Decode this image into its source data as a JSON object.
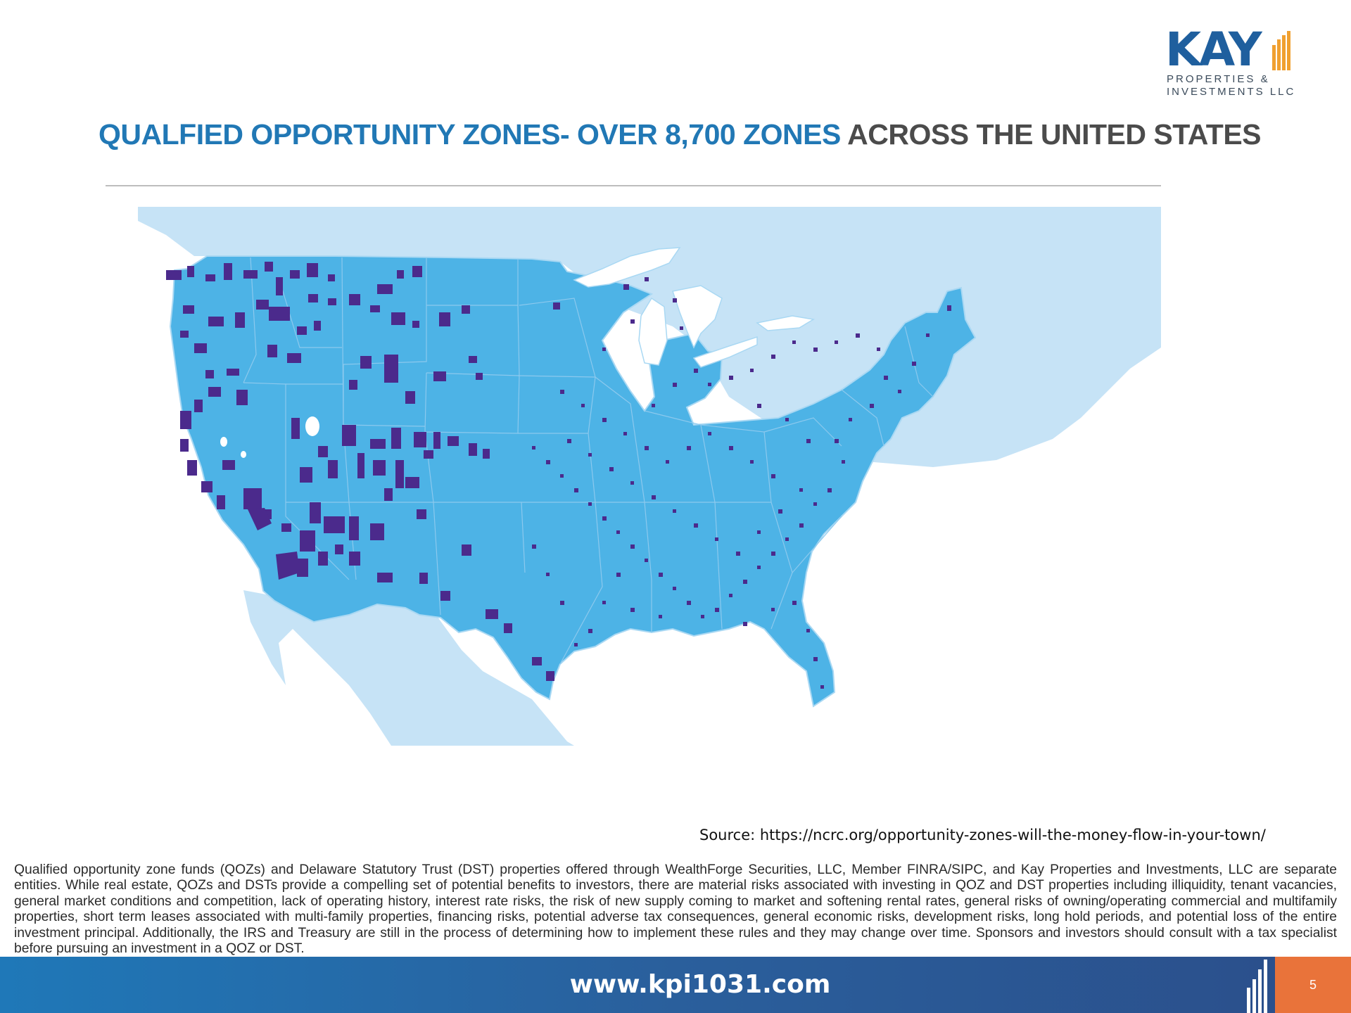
{
  "logo": {
    "word": "KAY",
    "line1": "PROPERTIES &",
    "line2": "INVESTMENTS LLC",
    "colors": {
      "word": "#1f5f9e",
      "bars": "#f0a030"
    }
  },
  "title": {
    "highlight": "QUALFIED OPPORTUNITY ZONES- OVER 8,700 ZONES",
    "rest": " ACROSS THE UNITED STATES",
    "colors": {
      "highlight": "#2178b5",
      "rest": "#4b4b4b"
    }
  },
  "map": {
    "colors": {
      "us_fill": "#4db3e6",
      "neighbors": "#c6e3f6",
      "water": "#ffffff",
      "zones": "#4b2a8c",
      "borders": "#8cc9ee"
    },
    "zone_density_note_icon": "dense-zone-dots"
  },
  "source": "Source: https://ncrc.org/opportunity-zones-will-the-money-flow-in-your-town/",
  "disclaimer": "Qualified opportunity zone funds (QOZs) and Delaware Statutory Trust (DST) properties offered through WealthForge Securities, LLC, Member FINRA/SIPC, and Kay Properties and Investments, LLC are separate entities. While real estate, QOZs and DSTs provide a compelling set of potential benefits to investors, there are material risks associated with investing in QOZ and DST properties including illiquidity, tenant vacancies, general market conditions and competition, lack of operating history, interest rate risks, the risk of new supply coming to market and softening rental rates, general risks of owning/operating commercial and multifamily properties, short term leases associated with multi-family properties, financing risks, potential adverse tax consequences, general economic risks, development risks, long hold periods, and potential loss of the entire investment principal. Additionally, the IRS and Treasury are still in the process of determining how to implement these rules and they may change over time. Sponsors and investors should consult with a tax specialist before pursuing an investment in a QOZ or DST.",
  "footer": {
    "url": "www.kpi1031.com",
    "page": "5",
    "colors": {
      "bar": "#2a5f9c",
      "page_box": "#e9733a"
    }
  }
}
